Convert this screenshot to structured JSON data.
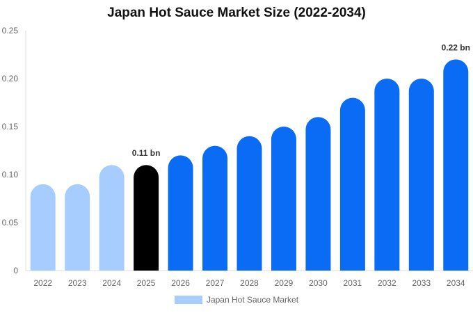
{
  "chart_data": {
    "type": "bar",
    "title": "Japan Hot Sauce Market Size (2022-2034)",
    "categories": [
      "2022",
      "2023",
      "2024",
      "2025",
      "2026",
      "2027",
      "2028",
      "2029",
      "2030",
      "2031",
      "2032",
      "2033",
      "2034"
    ],
    "series": [
      {
        "name": "Japan Hot Sauce Market",
        "values": [
          0.09,
          0.09,
          0.11,
          0.11,
          0.12,
          0.13,
          0.14,
          0.15,
          0.16,
          0.18,
          0.2,
          0.2,
          0.22
        ]
      }
    ],
    "bar_colors": [
      "#a6cdfd",
      "#a6cdfd",
      "#a6cdfd",
      "#000000",
      "#0a6cf5",
      "#0a6cf5",
      "#0a6cf5",
      "#0a6cf5",
      "#0a6cf5",
      "#0a6cf5",
      "#0a6cf5",
      "#0a6cf5",
      "#0a6cf5"
    ],
    "legend_color": "#a6cdfd",
    "ylim": [
      0,
      0.25
    ],
    "yticks": [
      "0",
      "0.05",
      "0.10",
      "0.15",
      "0.20",
      "0.25"
    ],
    "annotations": [
      {
        "category": "2025",
        "text": "0.11 bn"
      },
      {
        "category": "2034",
        "text": "0.22 bn"
      }
    ],
    "grid": false,
    "legend_position": "bottom"
  }
}
